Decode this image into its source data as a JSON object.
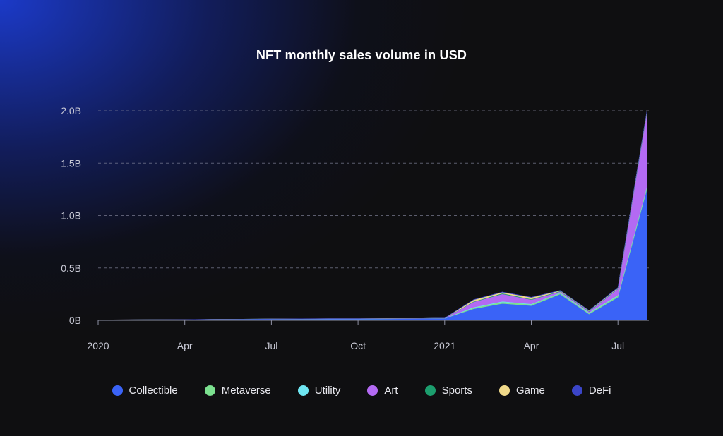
{
  "chart_data": {
    "type": "area",
    "stacked": true,
    "title": "NFT monthly sales volume in USD",
    "xlabel": "",
    "ylabel": "",
    "ylim": [
      0,
      2.0
    ],
    "y_unit": "B",
    "yticks": [
      {
        "value": 0,
        "label": "0B"
      },
      {
        "value": 0.5,
        "label": "0.5B"
      },
      {
        "value": 1.0,
        "label": "1.0B"
      },
      {
        "value": 1.5,
        "label": "1.5B"
      },
      {
        "value": 2.0,
        "label": "2.0B"
      }
    ],
    "x": [
      "2020-01",
      "2020-02",
      "2020-03",
      "2020-04",
      "2020-05",
      "2020-06",
      "2020-07",
      "2020-08",
      "2020-09",
      "2020-10",
      "2020-11",
      "2020-12",
      "2021-01",
      "2021-02",
      "2021-03",
      "2021-04",
      "2021-05",
      "2021-06",
      "2021-07",
      "2021-08"
    ],
    "xticks": [
      {
        "x": "2020-01",
        "label": "2020"
      },
      {
        "x": "2020-04",
        "label": "Apr"
      },
      {
        "x": "2020-07",
        "label": "Jul"
      },
      {
        "x": "2020-10",
        "label": "Oct"
      },
      {
        "x": "2021-01",
        "label": "2021"
      },
      {
        "x": "2021-04",
        "label": "Apr"
      },
      {
        "x": "2021-07",
        "label": "Jul"
      }
    ],
    "series": [
      {
        "name": "Collectible",
        "color": "#3a63f7",
        "values": [
          0.003,
          0.004,
          0.005,
          0.006,
          0.008,
          0.01,
          0.012,
          0.013,
          0.014,
          0.014,
          0.015,
          0.016,
          0.018,
          0.11,
          0.16,
          0.14,
          0.25,
          0.06,
          0.22,
          1.25
        ]
      },
      {
        "name": "Metaverse",
        "color": "#7be08f",
        "values": [
          0.0005,
          0.0005,
          0.0005,
          0.0005,
          0.0005,
          0.0006,
          0.0006,
          0.0007,
          0.0007,
          0.0007,
          0.0008,
          0.0008,
          0.001,
          0.01,
          0.015,
          0.012,
          0.01,
          0.01,
          0.015,
          0.02
        ]
      },
      {
        "name": "Utility",
        "color": "#6fe6f2",
        "values": [
          0.0002,
          0.0002,
          0.0002,
          0.0002,
          0.0002,
          0.0002,
          0.0002,
          0.0002,
          0.0002,
          0.0002,
          0.0002,
          0.0002,
          0.0005,
          0.005,
          0.006,
          0.005,
          0.004,
          0.004,
          0.005,
          0.006
        ]
      },
      {
        "name": "Art",
        "color": "#b36af3",
        "values": [
          0.0002,
          0.0002,
          0.0002,
          0.0002,
          0.0003,
          0.0003,
          0.0003,
          0.0003,
          0.0003,
          0.0003,
          0.0003,
          0.0003,
          0.001,
          0.05,
          0.07,
          0.04,
          0.01,
          0.01,
          0.06,
          0.7
        ]
      },
      {
        "name": "Sports",
        "color": "#1c9e6e",
        "values": [
          0.0001,
          0.0001,
          0.0001,
          0.0001,
          0.0001,
          0.0001,
          0.0001,
          0.0001,
          0.0001,
          0.0001,
          0.0001,
          0.0001,
          0.0002,
          0.005,
          0.007,
          0.006,
          0.005,
          0.005,
          0.006,
          0.008
        ]
      },
      {
        "name": "Game",
        "color": "#f0d98a",
        "values": [
          0.0002,
          0.0002,
          0.0002,
          0.0002,
          0.0002,
          0.0002,
          0.0002,
          0.0002,
          0.0002,
          0.0002,
          0.0002,
          0.0002,
          0.0005,
          0.015,
          0.01,
          0.015,
          0.004,
          0.003,
          0.005,
          0.005
        ]
      },
      {
        "name": "DeFi",
        "color": "#3b45c8",
        "values": [
          0.0001,
          0.0001,
          0.0001,
          0.0001,
          0.0001,
          0.0001,
          0.0001,
          0.0001,
          0.0001,
          0.0001,
          0.0001,
          0.0001,
          0.0001,
          0.002,
          0.002,
          0.002,
          0.002,
          0.002,
          0.002,
          0.003
        ]
      }
    ],
    "grid": true,
    "legend": "bottom"
  }
}
